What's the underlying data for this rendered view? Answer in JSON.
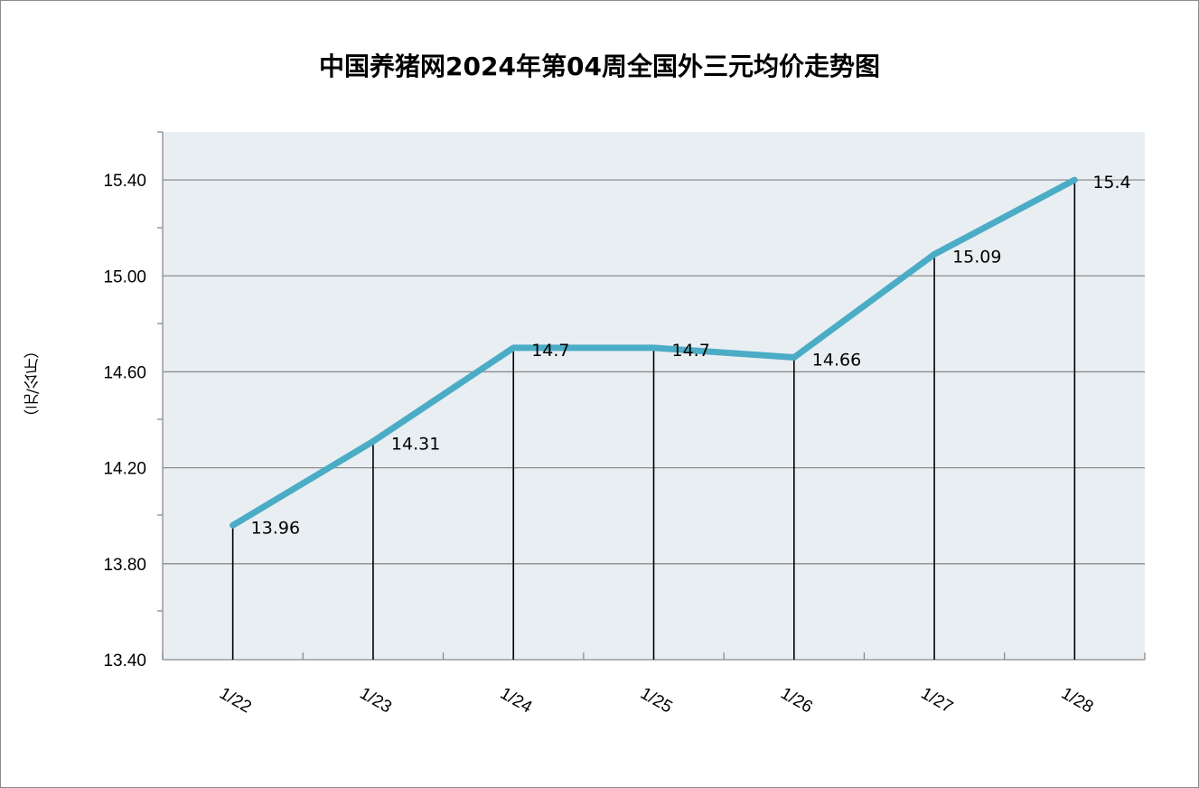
{
  "chart_data": {
    "type": "line",
    "title": "中国养猪网2024年第04周全国外三元均价走势图",
    "ylabel": "（元/公斤）",
    "xlabel": "",
    "categories": [
      "1/22",
      "1/23",
      "1/24",
      "1/25",
      "1/26",
      "1/27",
      "1/28"
    ],
    "series": [
      {
        "values": [
          13.96,
          14.31,
          14.7,
          14.7,
          14.66,
          15.09,
          15.4
        ]
      }
    ],
    "data_labels": [
      "13.96",
      "14.31",
      "14.7",
      "14.7",
      "14.66",
      "15.09",
      "15.4"
    ],
    "yticks": [
      "13.40",
      "13.80",
      "14.20",
      "14.60",
      "15.00",
      "15.40"
    ],
    "ytick_values": [
      13.4,
      13.8,
      14.2,
      14.6,
      15.0,
      15.4
    ],
    "ylim": [
      13.4,
      15.6
    ],
    "grid": true,
    "drop_lines": true,
    "colors": {
      "line": "#4bacc6",
      "plot_bg": "#e8eef2",
      "grid": "#8c8c8c",
      "axis": "#8c8c8c"
    }
  }
}
